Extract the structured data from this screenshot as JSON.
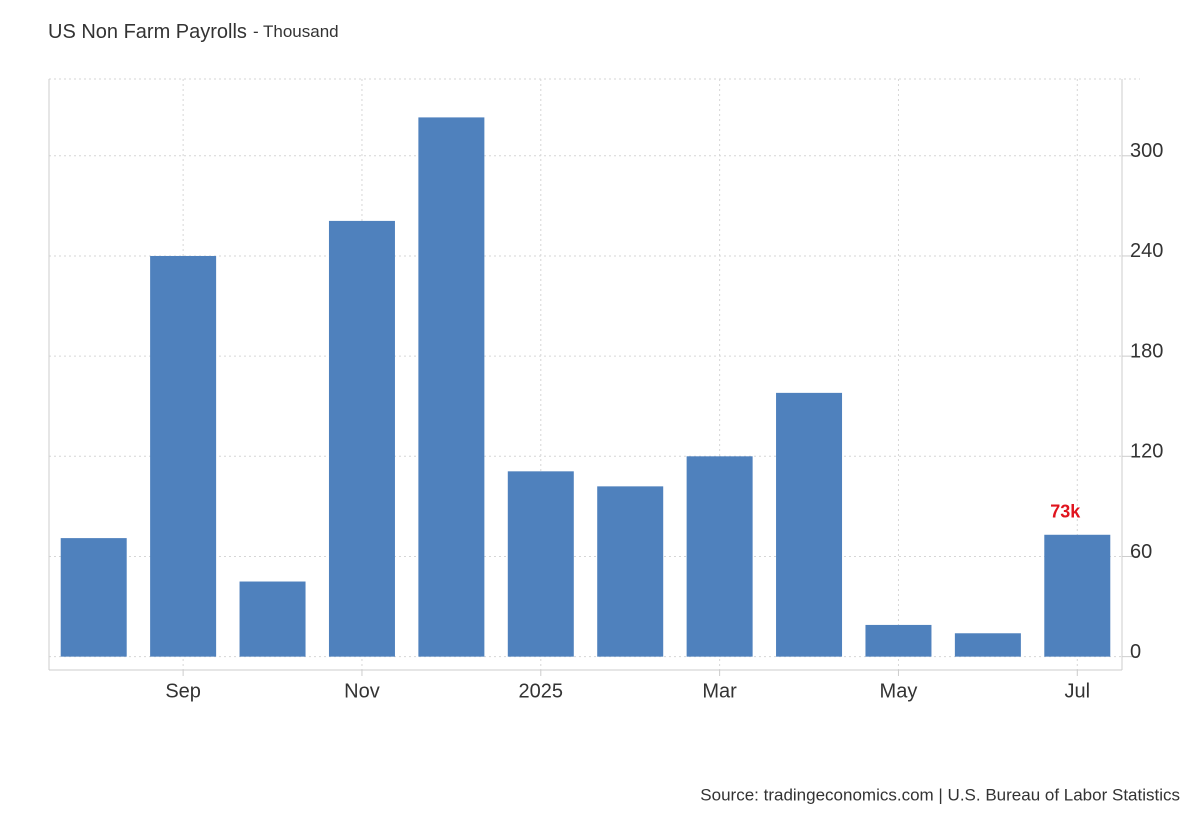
{
  "chart_data": {
    "type": "bar",
    "title": "US Non Farm Payrolls",
    "subtitle": "- Thousand",
    "categories": [
      null,
      "Sep",
      null,
      "Nov",
      null,
      "2025",
      null,
      "Mar",
      null,
      "May",
      null,
      "Jul"
    ],
    "values": [
      71,
      240,
      45,
      261,
      323,
      111,
      102,
      120,
      158,
      19,
      14,
      73
    ],
    "value_labels": [
      null,
      null,
      null,
      null,
      null,
      null,
      null,
      null,
      null,
      null,
      null,
      "73k"
    ],
    "value_label_color": "#e0141e",
    "color": "#4f81bd",
    "ylim": [
      -8,
      346
    ],
    "yticks": [
      0,
      60,
      120,
      180,
      240,
      300
    ],
    "grid": true,
    "source": "Source: tradingeconomics.com | U.S. Bureau of Labor Statistics"
  }
}
